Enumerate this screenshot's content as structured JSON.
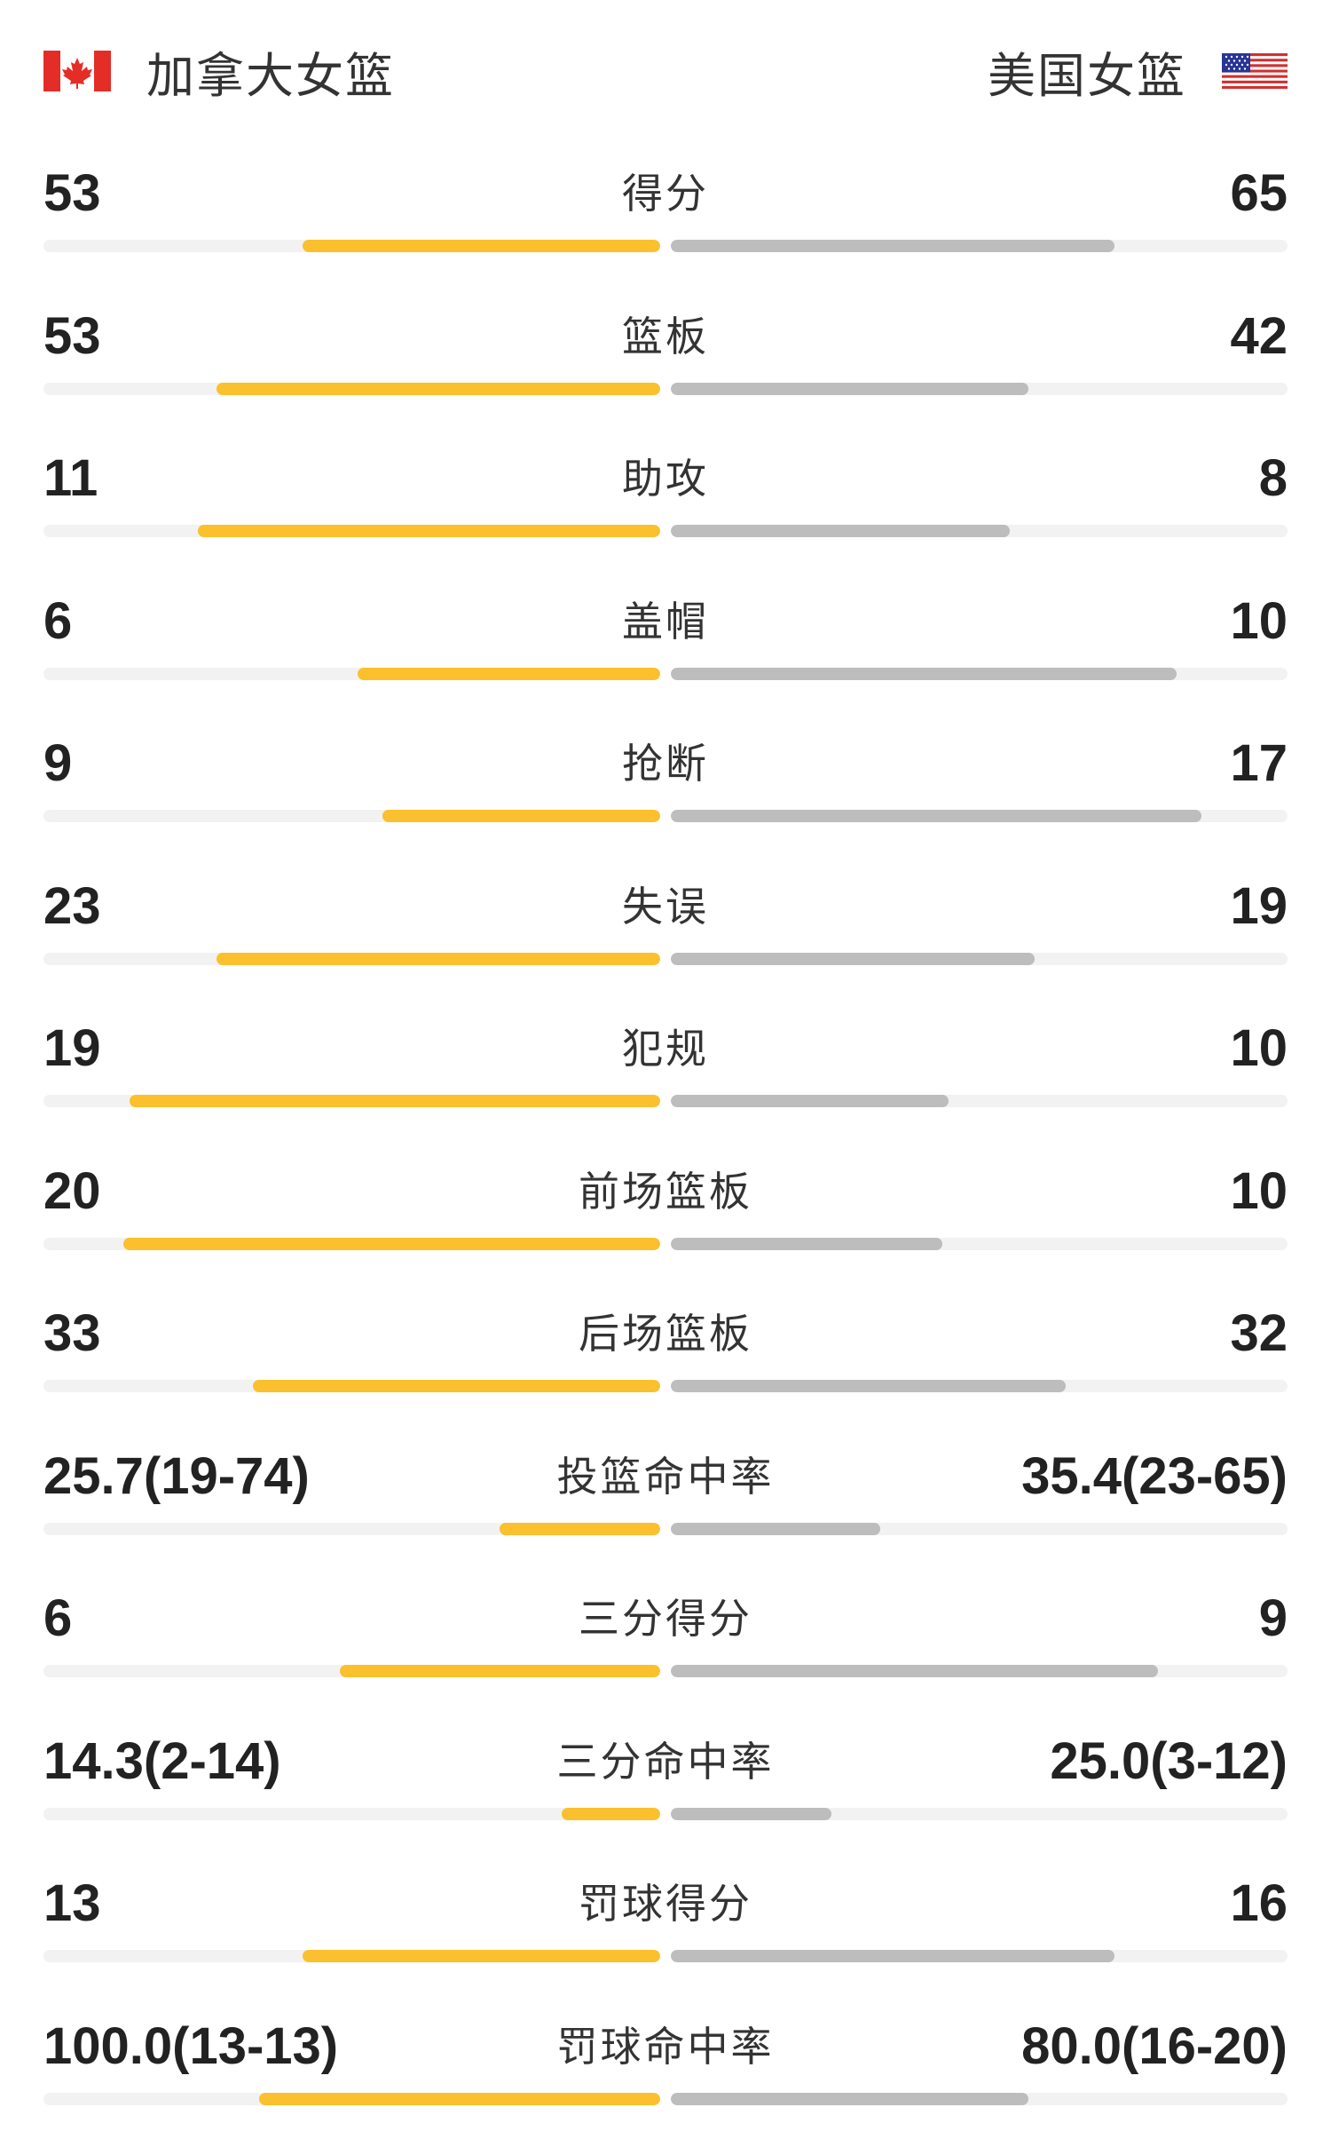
{
  "header": {
    "home_team": "加拿大女篮",
    "away_team": "美国女篮",
    "home_flag_icon": "canada-flag-icon",
    "away_flag_icon": "usa-flag-icon"
  },
  "colors": {
    "home_bar": "#FBC02D",
    "away_bar": "#BDBDBD",
    "track": "#F2F2F2"
  },
  "stats": [
    {
      "label": "得分",
      "home": "53",
      "away": "65",
      "home_fill": 0.29,
      "away_fill": 0.36
    },
    {
      "label": "篮板",
      "home": "53",
      "away": "42",
      "home_fill": 0.36,
      "away_fill": 0.29
    },
    {
      "label": "助攻",
      "home": "11",
      "away": "8",
      "home_fill": 0.375,
      "away_fill": 0.275
    },
    {
      "label": "盖帽",
      "home": "6",
      "away": "10",
      "home_fill": 0.245,
      "away_fill": 0.41
    },
    {
      "label": "抢断",
      "home": "9",
      "away": "17",
      "home_fill": 0.225,
      "away_fill": 0.43
    },
    {
      "label": "失误",
      "home": "23",
      "away": "19",
      "home_fill": 0.36,
      "away_fill": 0.295
    },
    {
      "label": "犯规",
      "home": "19",
      "away": "10",
      "home_fill": 0.43,
      "away_fill": 0.225
    },
    {
      "label": "前场篮板",
      "home": "20",
      "away": "10",
      "home_fill": 0.435,
      "away_fill": 0.22
    },
    {
      "label": "后场篮板",
      "home": "33",
      "away": "32",
      "home_fill": 0.33,
      "away_fill": 0.32
    },
    {
      "label": "投篮命中率",
      "home": "25.7(19-74)",
      "away": "35.4(23-65)",
      "home_fill": 0.13,
      "away_fill": 0.17
    },
    {
      "label": "三分得分",
      "home": "6",
      "away": "9",
      "home_fill": 0.26,
      "away_fill": 0.395
    },
    {
      "label": "三分命中率",
      "home": "14.3(2-14)",
      "away": "25.0(3-12)",
      "home_fill": 0.08,
      "away_fill": 0.13
    },
    {
      "label": "罚球得分",
      "home": "13",
      "away": "16",
      "home_fill": 0.29,
      "away_fill": 0.36
    },
    {
      "label": "罚球命中率",
      "home": "100.0(13-13)",
      "away": "80.0(16-20)",
      "home_fill": 0.325,
      "away_fill": 0.29
    }
  ]
}
